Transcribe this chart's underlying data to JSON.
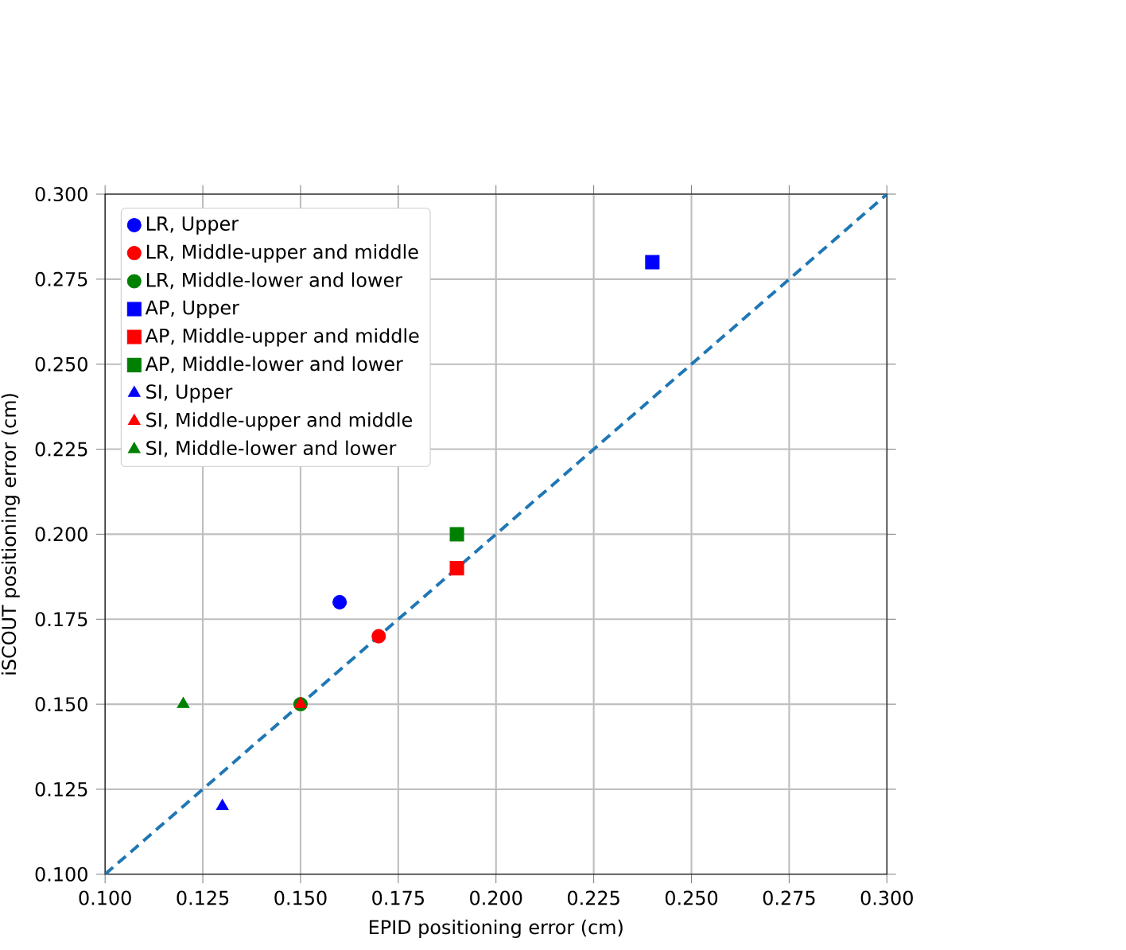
{
  "chart_data": {
    "type": "scatter",
    "xlabel": "EPID positioning error (cm)",
    "ylabel": "iSCOUT positioning error (cm)",
    "xlim": [
      0.1,
      0.3
    ],
    "ylim": [
      0.1,
      0.3
    ],
    "xticks": [
      {
        "value": 0.1,
        "label": "0.100"
      },
      {
        "value": 0.125,
        "label": "0.125"
      },
      {
        "value": 0.15,
        "label": "0.150"
      },
      {
        "value": 0.175,
        "label": "0.175"
      },
      {
        "value": 0.2,
        "label": "0.200"
      },
      {
        "value": 0.225,
        "label": "0.225"
      },
      {
        "value": 0.25,
        "label": "0.250"
      },
      {
        "value": 0.275,
        "label": "0.275"
      },
      {
        "value": 0.3,
        "label": "0.300"
      }
    ],
    "yticks": [
      {
        "value": 0.1,
        "label": "0.100"
      },
      {
        "value": 0.125,
        "label": "0.125"
      },
      {
        "value": 0.15,
        "label": "0.150"
      },
      {
        "value": 0.175,
        "label": "0.175"
      },
      {
        "value": 0.2,
        "label": "0.200"
      },
      {
        "value": 0.225,
        "label": "0.225"
      },
      {
        "value": 0.25,
        "label": "0.250"
      },
      {
        "value": 0.275,
        "label": "0.275"
      },
      {
        "value": 0.3,
        "label": "0.300"
      }
    ],
    "grid": true,
    "legend": "top left",
    "series": [
      {
        "name": "LR, Upper",
        "color": "#0000ff",
        "marker": "circle",
        "x": [
          0.16
        ],
        "values": [
          0.18
        ]
      },
      {
        "name": "LR, Middle-upper and middle",
        "color": "#ff0000",
        "marker": "circle",
        "x": [
          0.17
        ],
        "values": [
          0.17
        ]
      },
      {
        "name": "LR, Middle-lower and lower",
        "color": "#008000",
        "marker": "circle",
        "x": [
          0.15
        ],
        "values": [
          0.15
        ]
      },
      {
        "name": "AP, Upper",
        "color": "#0000ff",
        "marker": "square",
        "x": [
          0.24
        ],
        "values": [
          0.28
        ]
      },
      {
        "name": "AP, Middle-upper and middle",
        "color": "#ff0000",
        "marker": "square",
        "x": [
          0.19
        ],
        "values": [
          0.19
        ]
      },
      {
        "name": "AP, Middle-lower and lower",
        "color": "#008000",
        "marker": "square",
        "x": [
          0.19
        ],
        "values": [
          0.2
        ]
      },
      {
        "name": "SI, Upper",
        "color": "#0000ff",
        "marker": "triangle",
        "x": [
          0.13
        ],
        "values": [
          0.12
        ]
      },
      {
        "name": "SI, Middle-upper and middle",
        "color": "#ff0000",
        "marker": "triangle",
        "x": [
          0.15
        ],
        "values": [
          0.15
        ]
      },
      {
        "name": "SI, Middle-lower and lower",
        "color": "#008000",
        "marker": "triangle",
        "x": [
          0.12
        ],
        "values": [
          0.15
        ]
      },
      {
        "type": "line",
        "color": "#1f77b4",
        "line_style": "dashed",
        "marker": "none",
        "x": [
          0.1,
          0.3
        ],
        "values": [
          0.1,
          0.3
        ]
      }
    ]
  }
}
